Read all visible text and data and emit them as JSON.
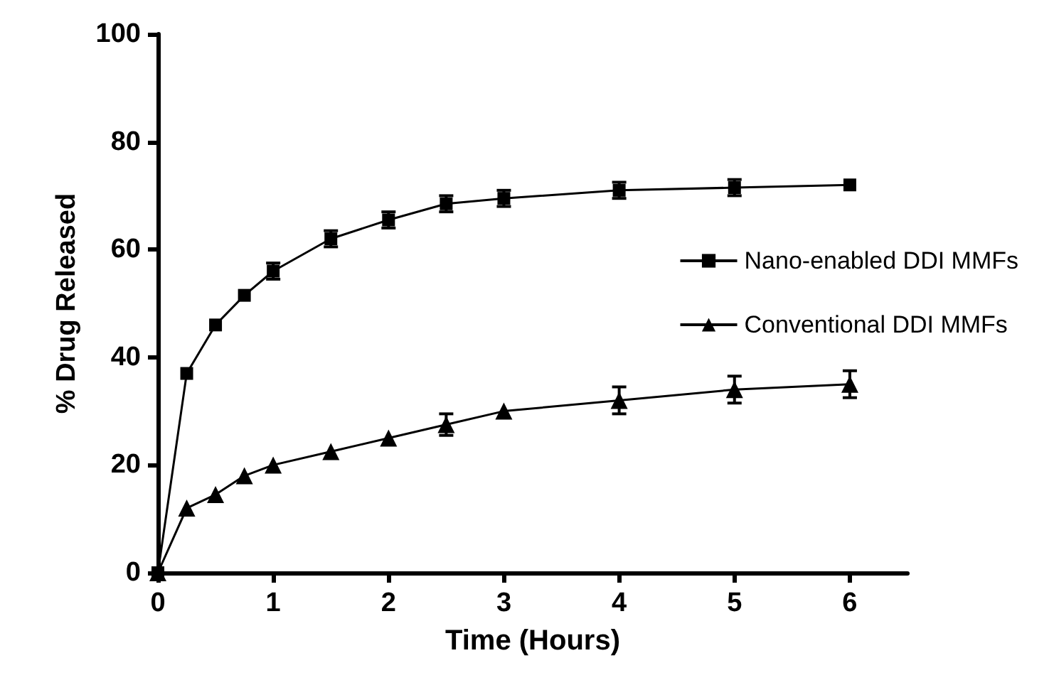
{
  "chart_data": {
    "type": "line",
    "xlabel": "Time (Hours)",
    "ylabel": "% Drug Released",
    "x": [
      0,
      0.25,
      0.5,
      0.75,
      1,
      1.5,
      2,
      2.5,
      3,
      4,
      5,
      6
    ],
    "xlim": [
      0,
      6.5
    ],
    "xticks": [
      0,
      1,
      2,
      3,
      4,
      5,
      6
    ],
    "ylim": [
      0,
      100
    ],
    "yticks": [
      0,
      20,
      40,
      60,
      80,
      100
    ],
    "grid": false,
    "legend": "right",
    "line_style": "solid",
    "series": [
      {
        "name": "Nano-enabled DDI MMFs",
        "color": "#000000",
        "marker": "square",
        "values": [
          0,
          37,
          46,
          51.5,
          56,
          62,
          65.5,
          68.5,
          69.5,
          71,
          71.5,
          72
        ],
        "errors": [
          null,
          null,
          null,
          null,
          1.5,
          1.5,
          1.5,
          1.5,
          1.5,
          1.5,
          1.5,
          null
        ]
      },
      {
        "name": "Conventional DDI MMFs",
        "color": "#000000",
        "marker": "triangle",
        "values": [
          0,
          12,
          14.5,
          18,
          20,
          22.5,
          25,
          27.5,
          30,
          32,
          34,
          35
        ],
        "errors": [
          null,
          null,
          null,
          null,
          null,
          null,
          null,
          2,
          null,
          2.5,
          2.5,
          2.5
        ]
      }
    ]
  }
}
